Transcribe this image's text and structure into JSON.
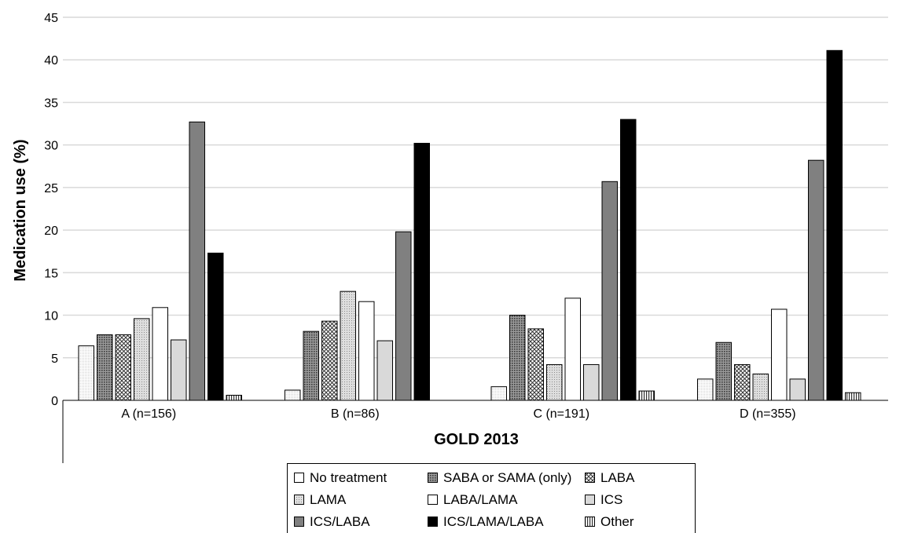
{
  "chart_data": {
    "type": "bar",
    "xlabel": "GOLD 2013",
    "ylabel": "Medication use (%)",
    "ylim": [
      0,
      45
    ],
    "yticks": [
      "0",
      "5",
      "10",
      "15",
      "20",
      "25",
      "30",
      "35",
      "40",
      "45"
    ],
    "grid": true,
    "legend_position": "bottom",
    "categories": [
      "A (n=156)",
      "B (n=86)",
      "C (n=191)",
      "D (n=355)"
    ],
    "series": [
      {
        "name": "No treatment",
        "values": [
          6.4,
          1.2,
          1.6,
          2.5
        ],
        "pattern": "white",
        "color": "#ffffff"
      },
      {
        "name": "SABA or SAMA (only)",
        "values": [
          7.7,
          8.1,
          10.0,
          6.8
        ],
        "pattern": "dense-dots",
        "color": "#6e6e6e"
      },
      {
        "name": "LABA",
        "values": [
          7.7,
          9.3,
          8.4,
          4.2
        ],
        "pattern": "checker",
        "color": "#999999"
      },
      {
        "name": "LAMA",
        "values": [
          9.6,
          12.8,
          4.2,
          3.1
        ],
        "pattern": "fine-dots",
        "color": "#bdbdbd"
      },
      {
        "name": "LABA/LAMA",
        "values": [
          10.9,
          11.6,
          12.0,
          10.7
        ],
        "pattern": "white",
        "color": "#ffffff"
      },
      {
        "name": "ICS",
        "values": [
          7.1,
          7.0,
          4.2,
          2.5
        ],
        "pattern": "solid",
        "color": "#d9d9d9"
      },
      {
        "name": "ICS/LABA",
        "values": [
          32.7,
          19.8,
          25.7,
          28.2
        ],
        "pattern": "solid",
        "color": "#808080"
      },
      {
        "name": "ICS/LAMA/LABA",
        "values": [
          17.3,
          30.2,
          33.0,
          41.1
        ],
        "pattern": "solid",
        "color": "#000000"
      },
      {
        "name": "Other",
        "values": [
          0.6,
          0.0,
          1.1,
          0.9
        ],
        "pattern": "vertical-lines",
        "color": "#555555"
      }
    ]
  }
}
